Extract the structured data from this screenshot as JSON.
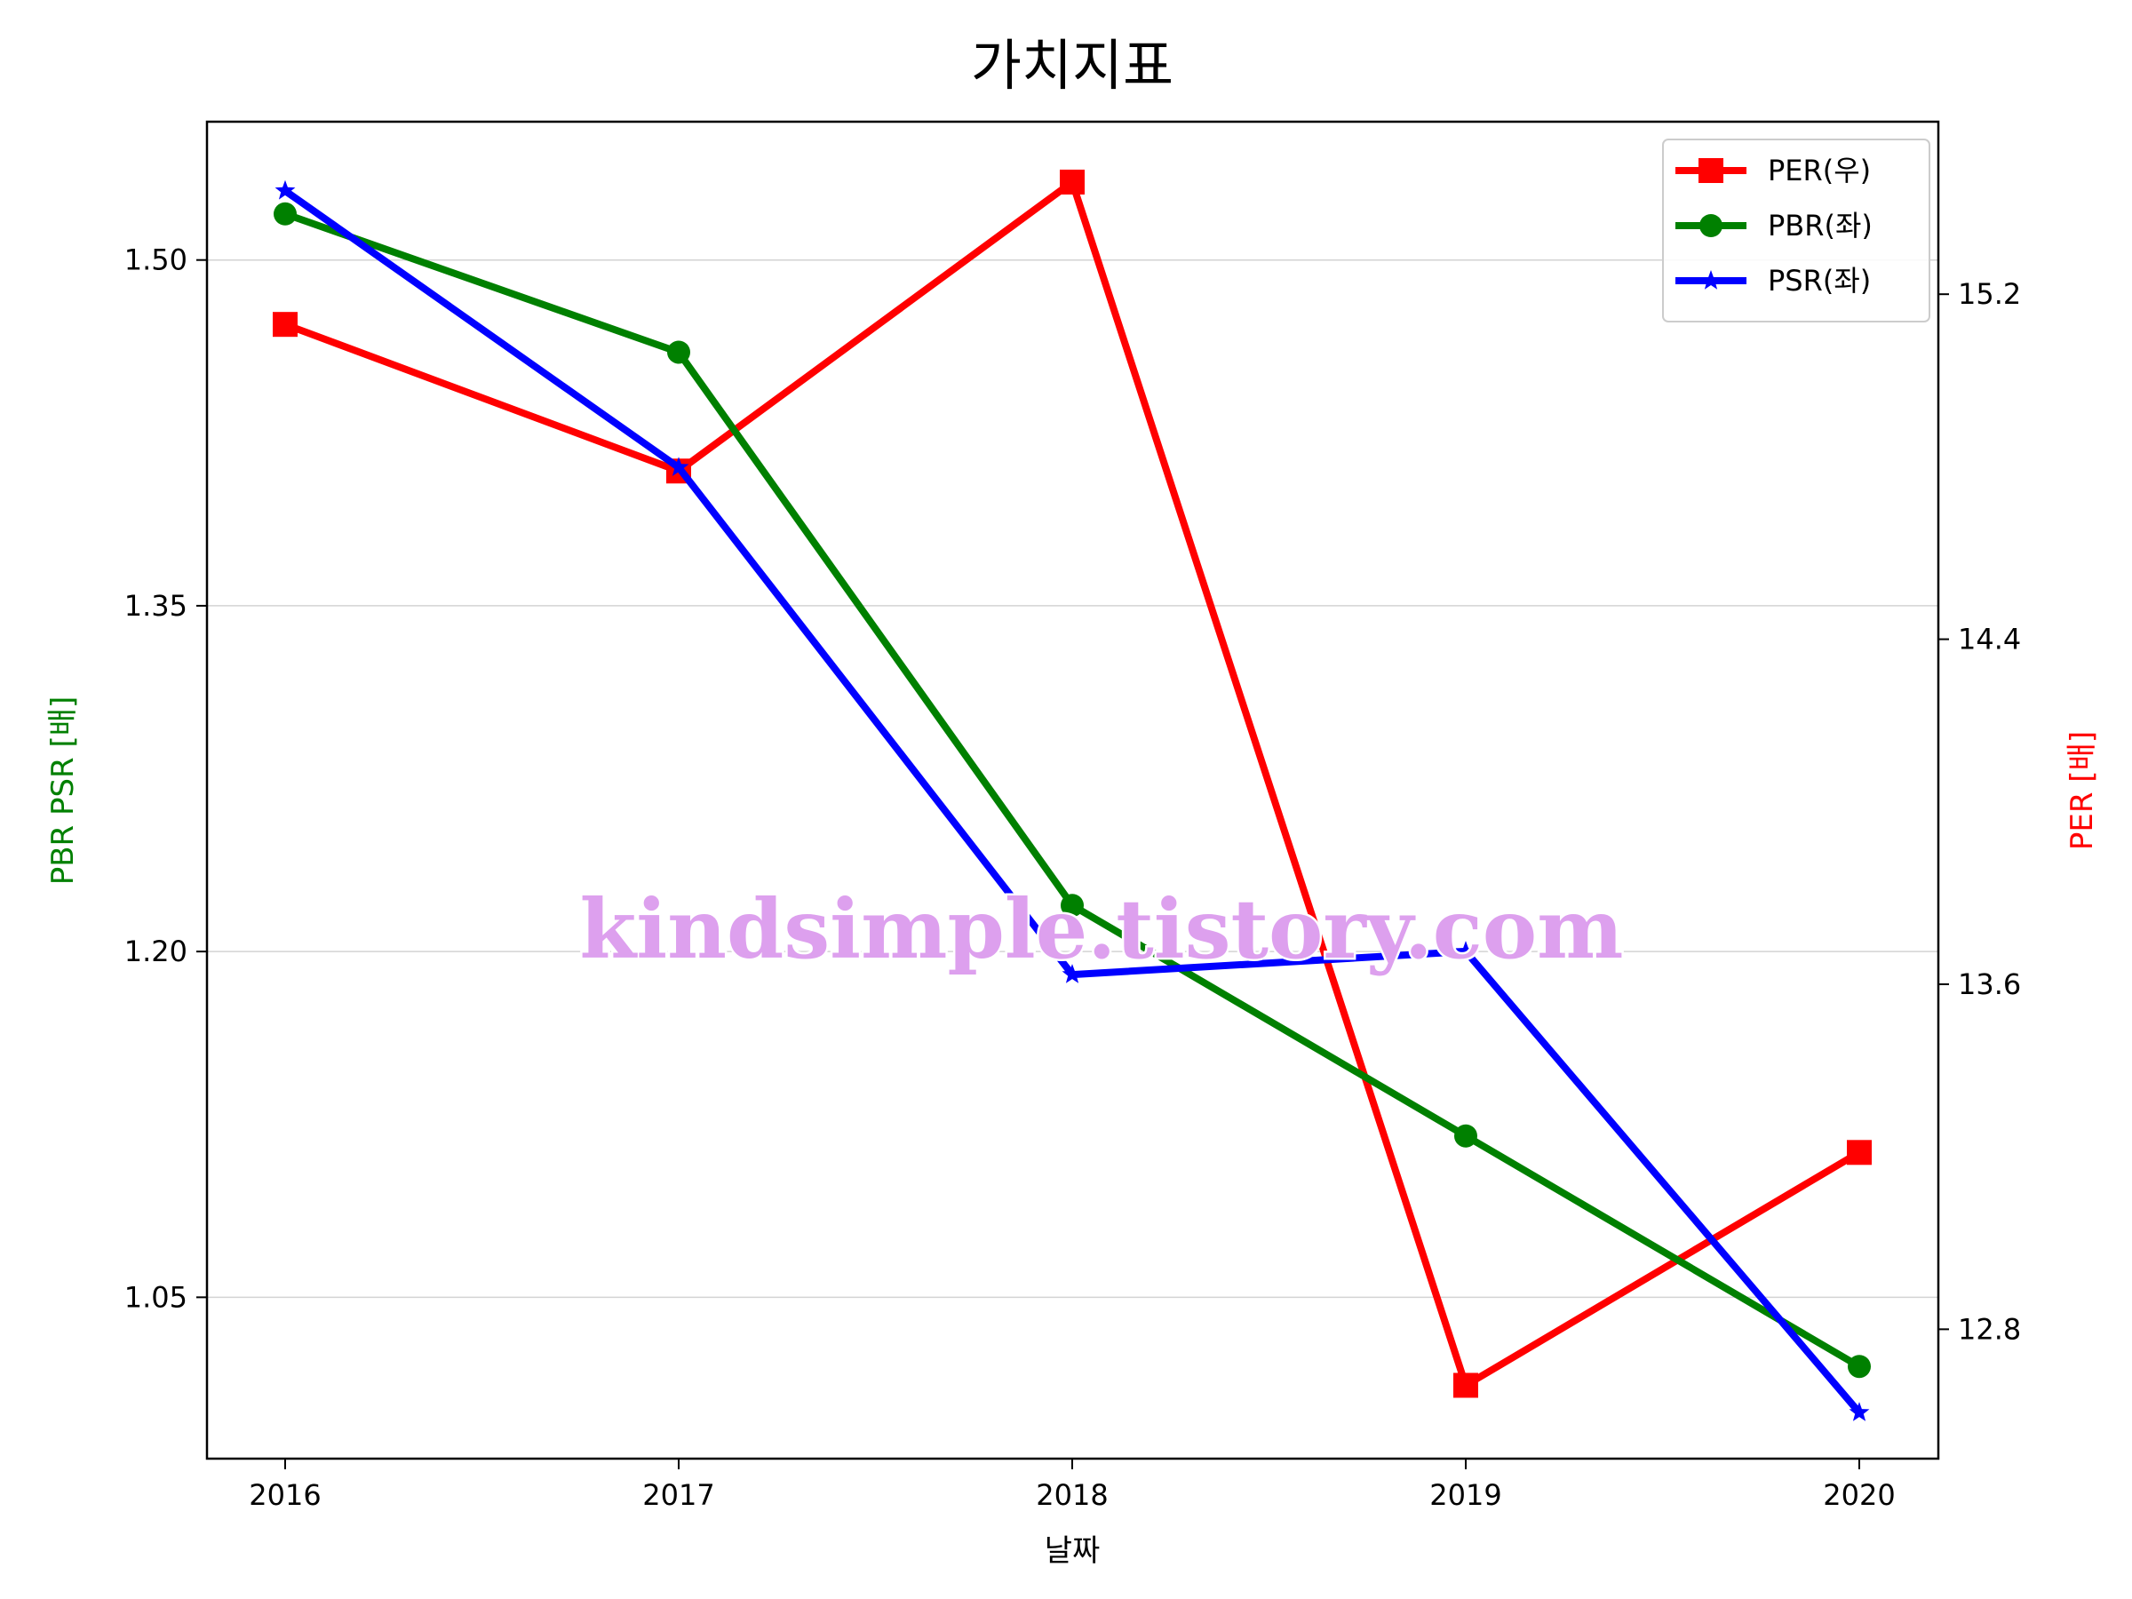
{
  "chart_data": {
    "type": "line",
    "title": "가치지표",
    "xlabel": "날짜",
    "ylabel_left": "PBR PSR [배]",
    "ylabel_right": "PER [배]",
    "categories": [
      "2016",
      "2017",
      "2018",
      "2019",
      "2020"
    ],
    "left_axis": {
      "ylim": [
        0.98,
        1.56
      ],
      "ticks": [
        "1.05",
        "1.20",
        "1.35",
        "1.50"
      ]
    },
    "right_axis": {
      "ylim": [
        12.5,
        15.6
      ],
      "ticks": [
        "12.8",
        "13.6",
        "14.4",
        "15.2"
      ]
    },
    "grid": "horizontal (left axis)",
    "legend_position": "top-right",
    "series": [
      {
        "name": "PER(우)",
        "axis": "right",
        "marker": "square",
        "color": "#ff0000",
        "values": [
          15.13,
          14.79,
          15.46,
          12.67,
          13.21
        ]
      },
      {
        "name": "PBR(좌)",
        "axis": "left",
        "marker": "circle",
        "color": "#008000",
        "values": [
          1.52,
          1.46,
          1.22,
          1.12,
          1.02
        ]
      },
      {
        "name": "PSR(좌)",
        "axis": "left",
        "marker": "star",
        "color": "#0000ff",
        "values": [
          1.53,
          1.41,
          1.19,
          1.2,
          1.0
        ]
      }
    ],
    "watermark": "kindsimple.tistory.com"
  }
}
